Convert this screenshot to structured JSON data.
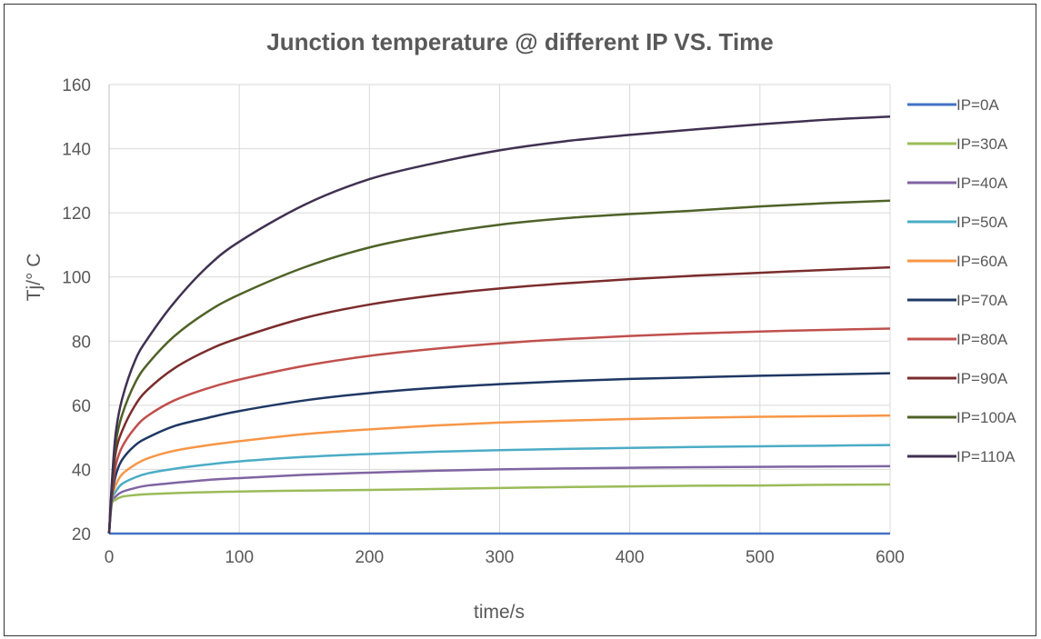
{
  "chart_data": {
    "type": "line",
    "title": "Junction temperature @ different IP VS. Time",
    "xlabel": "time/s",
    "ylabel": "Tj/° C",
    "xlim": [
      0,
      600
    ],
    "ylim": [
      20,
      160
    ],
    "x_ticks": [
      "0",
      "100",
      "200",
      "300",
      "400",
      "500",
      "600"
    ],
    "y_ticks": [
      "20",
      "40",
      "60",
      "80",
      "100",
      "120",
      "140",
      "160"
    ],
    "grid": true,
    "legend_position": "right",
    "x": [
      0,
      2,
      5,
      10,
      20,
      30,
      50,
      75,
      100,
      150,
      200,
      250,
      300,
      350,
      400,
      450,
      500,
      550,
      600
    ],
    "series": [
      {
        "name": "IP=0A",
        "color": "#4472C4",
        "values": [
          20,
          20,
          20,
          20,
          20,
          20,
          20,
          20,
          20,
          20,
          20,
          20,
          20,
          20,
          20,
          20,
          20,
          20,
          20
        ]
      },
      {
        "name": "IP=30A",
        "color": "#9BBB59",
        "values": [
          20,
          29,
          30.5,
          31.5,
          32,
          32.3,
          32.6,
          32.9,
          33.1,
          33.4,
          33.6,
          33.9,
          34.2,
          34.5,
          34.7,
          34.9,
          35.0,
          35.2,
          35.3
        ]
      },
      {
        "name": "IP=40A",
        "color": "#8064A2",
        "values": [
          20,
          29.5,
          31.5,
          33,
          34.2,
          35,
          35.8,
          36.7,
          37.3,
          38.3,
          39.0,
          39.6,
          40.0,
          40.3,
          40.5,
          40.7,
          40.8,
          40.9,
          41.0
        ]
      },
      {
        "name": "IP=50A",
        "color": "#4BACC6",
        "values": [
          20,
          30,
          33,
          35.5,
          37.5,
          38.8,
          40.2,
          41.5,
          42.5,
          43.9,
          44.8,
          45.5,
          46.0,
          46.4,
          46.7,
          47.0,
          47.2,
          47.4,
          47.6
        ]
      },
      {
        "name": "IP=60A",
        "color": "#F79646",
        "values": [
          20,
          30.5,
          35,
          38.5,
          41.5,
          43.5,
          45.8,
          47.5,
          48.8,
          51.0,
          52.5,
          53.7,
          54.6,
          55.2,
          55.7,
          56.1,
          56.4,
          56.6,
          56.8
        ]
      },
      {
        "name": "IP=70A",
        "color": "#1F3864",
        "values": [
          20,
          31,
          38,
          43,
          47.5,
          50,
          53.5,
          56,
          58.2,
          61.5,
          63.8,
          65.4,
          66.6,
          67.5,
          68.2,
          68.7,
          69.2,
          69.6,
          70.0
        ]
      },
      {
        "name": "IP=80A",
        "color": "#C0504D",
        "values": [
          20,
          32,
          41,
          47,
          53,
          56.8,
          61.5,
          65.2,
          68,
          72.3,
          75.4,
          77.6,
          79.3,
          80.6,
          81.6,
          82.4,
          83.0,
          83.5,
          83.9
        ]
      },
      {
        "name": "IP=90A",
        "color": "#7B2C2C",
        "values": [
          20,
          33,
          45,
          52,
          60,
          65,
          71.5,
          77,
          81,
          87.2,
          91.4,
          94.3,
          96.4,
          98.0,
          99.3,
          100.4,
          101.3,
          102.2,
          103.0
        ]
      },
      {
        "name": "IP=100A",
        "color": "#4F6228",
        "values": [
          20,
          34,
          48,
          57,
          67,
          73,
          81.5,
          89,
          94.5,
          103,
          109.2,
          113.3,
          116.3,
          118.3,
          119.6,
          120.7,
          122.0,
          123.0,
          123.8
        ]
      },
      {
        "name": "IP=110A",
        "color": "#403151",
        "values": [
          20,
          35,
          51,
          62,
          74,
          81,
          92,
          103,
          111,
          122.5,
          130.5,
          135.5,
          139.5,
          142.3,
          144.3,
          146.0,
          147.6,
          149.0,
          150.0
        ]
      }
    ]
  }
}
